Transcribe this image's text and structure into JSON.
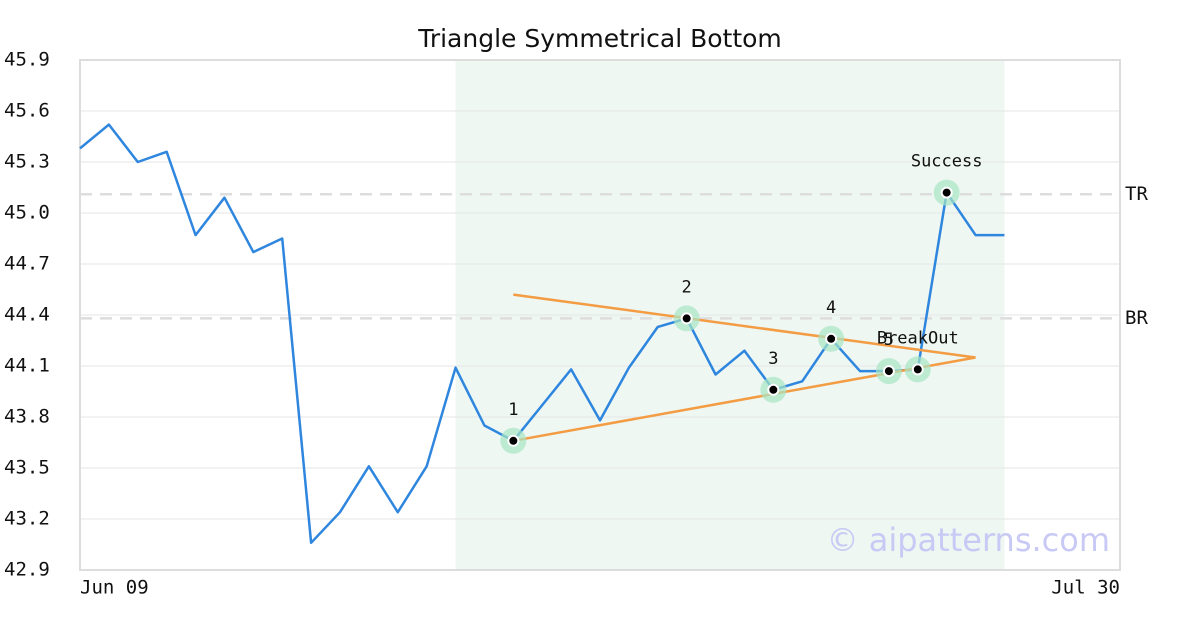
{
  "chart_data": {
    "type": "line",
    "title": "Triangle Symmetrical Bottom",
    "categories": [
      "Jun 09",
      null,
      null,
      null,
      null,
      null,
      null,
      null,
      null,
      null,
      null,
      null,
      null,
      null,
      null,
      null,
      null,
      null,
      null,
      null,
      null,
      null,
      null,
      null,
      null,
      null,
      null,
      null,
      null,
      null,
      null,
      null,
      null,
      null,
      null,
      null,
      "Jul 30"
    ],
    "series": [
      {
        "color": "#2e86de",
        "values": [
          45.38,
          45.52,
          45.3,
          45.36,
          44.87,
          45.09,
          44.77,
          44.85,
          43.06,
          43.24,
          43.51,
          43.24,
          43.51,
          44.09,
          43.75,
          43.66,
          43.87,
          44.08,
          43.78,
          44.09,
          44.33,
          44.38,
          44.05,
          44.19,
          43.96,
          44.01,
          44.26,
          44.07,
          44.07,
          44.08,
          45.12,
          44.87,
          44.87,
          null,
          null,
          null,
          null
        ]
      }
    ],
    "ylim": [
      42.9,
      45.9
    ],
    "yticks": [
      42.9,
      43.2,
      43.5,
      43.8,
      44.1,
      44.4,
      44.7,
      {
        "value": 45,
        "label": "45.0"
      },
      45.3,
      45.6,
      45.9
    ],
    "grid": true,
    "shade": {
      "start": 13,
      "end": 32,
      "color": "#eef7f2"
    },
    "levels": [
      {
        "label": "TR",
        "value": 45.11
      },
      {
        "label": "BR",
        "value": 44.38
      }
    ],
    "trendlines": [
      {
        "color": "#f39c44",
        "x": [
          15,
          31
        ],
        "values": [
          44.52,
          44.15
        ]
      },
      {
        "color": "#f39c44",
        "x": [
          15,
          31
        ],
        "values": [
          43.66,
          44.15
        ]
      }
    ],
    "points": [
      {
        "label": "1",
        "index": 15,
        "value": 43.66
      },
      {
        "label": "2",
        "index": 21,
        "value": 44.38
      },
      {
        "label": "3",
        "index": 24,
        "value": 43.96
      },
      {
        "label": "4",
        "index": 26,
        "value": 44.26
      },
      {
        "label": "5",
        "index": 28,
        "value": 44.07
      },
      {
        "label": "BreakOut",
        "index": 29,
        "value": 44.08
      },
      {
        "label": "Success",
        "index": 30,
        "value": 45.12
      }
    ],
    "watermark": "© aipatterns.com"
  }
}
